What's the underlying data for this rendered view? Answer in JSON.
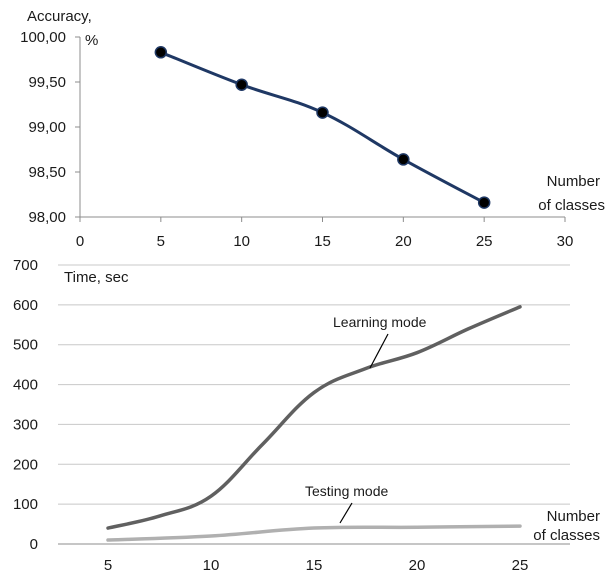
{
  "chart_data": [
    {
      "type": "line",
      "ylabel_lines": [
        "Accuracy,",
        "%"
      ],
      "xlabel_lines": [
        "Number",
        "of classes"
      ],
      "xlim": [
        0,
        30
      ],
      "ylim": [
        98,
        100
      ],
      "xticks": [
        0,
        5,
        10,
        15,
        20,
        25,
        30
      ],
      "xtick_labels": [
        "0",
        "5",
        "10",
        "15",
        "20",
        "25",
        "30"
      ],
      "yticks": [
        98,
        98.5,
        99,
        99.5,
        100
      ],
      "ytick_labels": [
        "98,00",
        "98,50",
        "99,00",
        "99,50",
        "100,00"
      ],
      "grid": false,
      "color": "#1f3864",
      "series": [
        {
          "x": [
            5,
            10,
            15,
            20,
            25
          ],
          "y": [
            99.83,
            99.47,
            99.16,
            98.64,
            98.16
          ]
        }
      ]
    },
    {
      "type": "line",
      "ylabel": "Time, sec",
      "xlabel_lines": [
        "Number",
        "of classes"
      ],
      "xlim": [
        5,
        25
      ],
      "ylim": [
        0,
        700
      ],
      "xticks": [
        5,
        10,
        15,
        20,
        25
      ],
      "xtick_labels": [
        "5",
        "10",
        "15",
        "20",
        "25"
      ],
      "yticks": [
        0,
        100,
        200,
        300,
        400,
        500,
        600,
        700
      ],
      "ytick_labels": [
        "0",
        "100",
        "200",
        "300",
        "400",
        "500",
        "600",
        "700"
      ],
      "grid": true,
      "series": [
        {
          "name": "Learning mode",
          "color": "#606060",
          "x": [
            5,
            7.5,
            10,
            12.5,
            15,
            17.5,
            20,
            22.5,
            25
          ],
          "y": [
            40,
            70,
            120,
            250,
            380,
            440,
            480,
            540,
            595
          ]
        },
        {
          "name": "Testing mode",
          "color": "#b0b0b0",
          "x": [
            5,
            10,
            15,
            20,
            25
          ],
          "y": [
            10,
            20,
            40,
            42,
            45
          ]
        }
      ]
    }
  ]
}
